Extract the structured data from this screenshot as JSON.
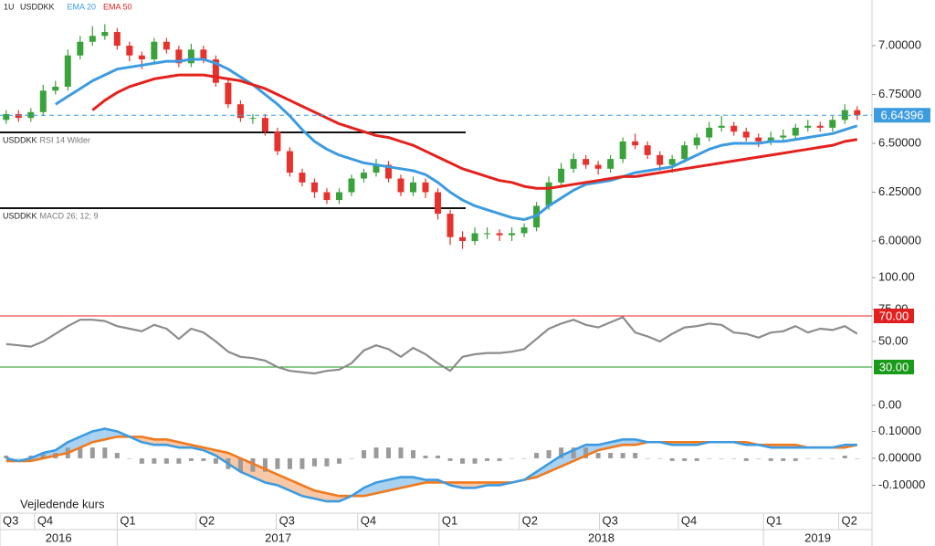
{
  "time_axis": {
    "xlim": [
      -0.5,
      70.2
    ],
    "quarters": [
      {
        "value": -0.5,
        "label": "Q3"
      },
      {
        "value": 2.3,
        "label": "Q4"
      },
      {
        "value": 9,
        "label": "Q1"
      },
      {
        "value": 15.4,
        "label": "Q2"
      },
      {
        "value": 21.9,
        "label": "Q3"
      },
      {
        "value": 28.5,
        "label": "Q4"
      },
      {
        "value": 35.1,
        "label": "Q1"
      },
      {
        "value": 41.6,
        "label": "Q2"
      },
      {
        "value": 48.1,
        "label": "Q3"
      },
      {
        "value": 54.5,
        "label": "Q4"
      },
      {
        "value": 61.4,
        "label": "Q1"
      },
      {
        "value": 67.5,
        "label": "Q2"
      }
    ],
    "years": [
      {
        "value": -0.5,
        "label": "2016"
      },
      {
        "value": 9,
        "label": "2017"
      },
      {
        "value": 35.1,
        "label": "2018"
      },
      {
        "value": 61.4,
        "label": "2019"
      }
    ]
  },
  "footnote": "Vejledende kurs",
  "chart_data": [
    {
      "type": "candlestick",
      "interval": "1U",
      "symbol": "USDDKK",
      "open": [
        6.62,
        6.65,
        6.63,
        6.66,
        6.77,
        6.79,
        6.95,
        7.02,
        7.05,
        7.07,
        7.0,
        6.95,
        6.93,
        7.02,
        6.98,
        6.91,
        6.98,
        6.93,
        6.81,
        6.7,
        6.63,
        6.63,
        6.56,
        6.46,
        6.35,
        6.3,
        6.25,
        6.21,
        6.25,
        6.32,
        6.35,
        6.39,
        6.32,
        6.25,
        6.3,
        6.25,
        6.14,
        6.02,
        6.0,
        6.04,
        6.04,
        6.03,
        6.04,
        6.07,
        6.18,
        6.3,
        6.37,
        6.42,
        6.39,
        6.37,
        6.42,
        6.51,
        6.49,
        6.44,
        6.39,
        6.42,
        6.49,
        6.53,
        6.58,
        6.59,
        6.56,
        6.53,
        6.51,
        6.53,
        6.54,
        6.58,
        6.59,
        6.58,
        6.62,
        6.67
      ],
      "high": [
        6.67,
        6.67,
        6.68,
        6.8,
        6.82,
        6.98,
        7.05,
        7.1,
        7.11,
        7.09,
        7.02,
        6.97,
        7.04,
        7.04,
        7.0,
        7.01,
        7.0,
        6.95,
        6.83,
        6.72,
        6.65,
        6.65,
        6.58,
        6.48,
        6.37,
        6.32,
        6.27,
        6.27,
        6.34,
        6.37,
        6.42,
        6.41,
        6.34,
        6.33,
        6.32,
        6.27,
        6.16,
        6.05,
        6.07,
        6.07,
        6.06,
        6.07,
        6.09,
        6.2,
        6.33,
        6.4,
        6.45,
        6.44,
        6.41,
        6.44,
        6.53,
        6.55,
        6.51,
        6.46,
        6.44,
        6.51,
        6.55,
        6.61,
        6.64,
        6.61,
        6.58,
        6.55,
        6.56,
        6.57,
        6.6,
        6.62,
        6.61,
        6.64,
        6.7,
        6.69
      ],
      "low": [
        6.6,
        6.61,
        6.61,
        6.64,
        6.75,
        6.77,
        6.93,
        7.0,
        7.03,
        6.98,
        6.92,
        6.88,
        6.91,
        6.96,
        6.89,
        6.89,
        6.91,
        6.79,
        6.68,
        6.61,
        6.6,
        6.54,
        6.44,
        6.33,
        6.28,
        6.22,
        6.19,
        6.19,
        6.23,
        6.3,
        6.33,
        6.3,
        6.23,
        6.23,
        6.22,
        6.11,
        5.98,
        5.96,
        5.98,
        6.01,
        6.0,
        6.0,
        6.02,
        6.05,
        6.16,
        6.28,
        6.35,
        6.37,
        6.34,
        6.35,
        6.4,
        6.47,
        6.42,
        6.36,
        6.35,
        6.4,
        6.47,
        6.51,
        6.56,
        6.54,
        6.51,
        6.48,
        6.49,
        6.51,
        6.52,
        6.56,
        6.56,
        6.56,
        6.6,
        6.62
      ],
      "close": [
        6.65,
        6.63,
        6.66,
        6.77,
        6.79,
        6.95,
        7.02,
        7.05,
        7.07,
        7.0,
        6.95,
        6.93,
        7.02,
        6.98,
        6.91,
        6.98,
        6.93,
        6.81,
        6.7,
        6.63,
        6.63,
        6.56,
        6.46,
        6.35,
        6.3,
        6.25,
        6.21,
        6.25,
        6.32,
        6.35,
        6.39,
        6.32,
        6.25,
        6.3,
        6.25,
        6.14,
        6.02,
        6.0,
        6.04,
        6.04,
        6.03,
        6.04,
        6.07,
        6.18,
        6.3,
        6.37,
        6.42,
        6.39,
        6.37,
        6.42,
        6.51,
        6.49,
        6.44,
        6.39,
        6.42,
        6.49,
        6.53,
        6.58,
        6.59,
        6.56,
        6.53,
        6.51,
        6.53,
        6.54,
        6.58,
        6.59,
        6.58,
        6.62,
        6.67,
        6.64396
      ],
      "up_color": "#3aa23a",
      "down_color": "#e5322d",
      "series": [
        {
          "name": "EMA 20",
          "color": "#3d9be0",
          "values": [
            null,
            null,
            null,
            null,
            6.7,
            6.74,
            6.78,
            6.82,
            6.85,
            6.88,
            6.89,
            6.9,
            6.91,
            6.92,
            6.92,
            6.93,
            6.93,
            6.91,
            6.88,
            6.84,
            6.8,
            6.75,
            6.7,
            6.64,
            6.57,
            6.51,
            6.47,
            6.44,
            6.42,
            6.4,
            6.39,
            6.38,
            6.37,
            6.36,
            6.34,
            6.3,
            6.25,
            6.21,
            6.18,
            6.16,
            6.14,
            6.12,
            6.11,
            6.13,
            6.18,
            6.22,
            6.26,
            6.29,
            6.3,
            6.31,
            6.33,
            6.35,
            6.36,
            6.37,
            6.38,
            6.41,
            6.44,
            6.47,
            6.49,
            6.5,
            6.5,
            6.5,
            6.51,
            6.51,
            6.52,
            6.53,
            6.54,
            6.55,
            6.57,
            6.59
          ]
        },
        {
          "name": "EMA 50",
          "color": "#e3221d",
          "values": [
            null,
            null,
            null,
            null,
            null,
            null,
            null,
            6.67,
            6.72,
            6.76,
            6.79,
            6.81,
            6.83,
            6.84,
            6.85,
            6.85,
            6.85,
            6.84,
            6.83,
            6.82,
            6.8,
            6.78,
            6.75,
            6.72,
            6.69,
            6.66,
            6.63,
            6.6,
            6.58,
            6.56,
            6.54,
            6.53,
            6.51,
            6.49,
            6.46,
            6.43,
            6.4,
            6.37,
            6.35,
            6.33,
            6.31,
            6.3,
            6.28,
            6.27,
            6.27,
            6.28,
            6.29,
            6.3,
            6.31,
            6.32,
            6.33,
            6.33,
            6.34,
            6.35,
            6.36,
            6.37,
            6.38,
            6.39,
            6.4,
            6.41,
            6.42,
            6.43,
            6.44,
            6.45,
            6.46,
            6.47,
            6.48,
            6.49,
            6.51,
            6.52
          ]
        }
      ],
      "last_price": 6.64396,
      "last_price_color": "#3d9be0",
      "ylim": [
        5.8,
        7.23
      ],
      "yticks": [
        {
          "value": 6,
          "label": "6.00000"
        },
        {
          "value": 6.25,
          "label": "6.25000"
        },
        {
          "value": 6.5,
          "label": "6.50000"
        },
        {
          "value": 6.75,
          "label": "6.75000"
        },
        {
          "value": 7,
          "label": "7.00000"
        }
      ]
    },
    {
      "type": "line",
      "symbol": "USDDKK",
      "title": "RSI 14 Wilder",
      "color": "#8c8c8c",
      "values": [
        48,
        47,
        46,
        50,
        56,
        62,
        67,
        67,
        66,
        62,
        60,
        58,
        63,
        60,
        52,
        60,
        57,
        50,
        42,
        38,
        37,
        35,
        30,
        27,
        26,
        25,
        27,
        28,
        33,
        43,
        47,
        44,
        38,
        45,
        40,
        33,
        27,
        38,
        40,
        41,
        41,
        42,
        44,
        52,
        60,
        64,
        67,
        63,
        61,
        65,
        69,
        57,
        54,
        50,
        56,
        61,
        62,
        64,
        63,
        57,
        56,
        53,
        57,
        58,
        62,
        57,
        60,
        59,
        62,
        56
      ],
      "ylim": [
        0,
        100
      ],
      "yticks": [
        {
          "value": 0,
          "label": "0.00"
        },
        {
          "value": 50,
          "label": "50.00"
        },
        {
          "value": 75,
          "label": "75.00"
        },
        {
          "value": 100,
          "label": "100.00"
        }
      ],
      "levels": [
        {
          "value": 70,
          "label": "70.00",
          "color": "#e02020"
        },
        {
          "value": 30,
          "label": "30.00",
          "color": "#1a9a1a"
        }
      ]
    },
    {
      "type": "macd",
      "symbol": "USDDKK",
      "title": "MACD 26; 12; 9",
      "macd": [
        0.0,
        -0.01,
        0.0,
        0.02,
        0.03,
        0.06,
        0.08,
        0.1,
        0.11,
        0.1,
        0.08,
        0.06,
        0.05,
        0.05,
        0.04,
        0.04,
        0.03,
        0.01,
        -0.02,
        -0.05,
        -0.07,
        -0.09,
        -0.1,
        -0.12,
        -0.14,
        -0.15,
        -0.16,
        -0.16,
        -0.14,
        -0.11,
        -0.09,
        -0.08,
        -0.07,
        -0.07,
        -0.08,
        -0.08,
        -0.1,
        -0.11,
        -0.11,
        -0.1,
        -0.1,
        -0.09,
        -0.08,
        -0.05,
        -0.02,
        0.01,
        0.03,
        0.05,
        0.05,
        0.06,
        0.07,
        0.07,
        0.06,
        0.06,
        0.05,
        0.05,
        0.05,
        0.06,
        0.06,
        0.06,
        0.05,
        0.05,
        0.04,
        0.04,
        0.04,
        0.04,
        0.04,
        0.04,
        0.05,
        0.05
      ],
      "signal": [
        -0.01,
        -0.01,
        -0.01,
        0.0,
        0.01,
        0.02,
        0.04,
        0.06,
        0.07,
        0.08,
        0.08,
        0.08,
        0.07,
        0.07,
        0.06,
        0.05,
        0.04,
        0.03,
        0.02,
        0.0,
        -0.02,
        -0.04,
        -0.06,
        -0.08,
        -0.1,
        -0.12,
        -0.13,
        -0.14,
        -0.14,
        -0.14,
        -0.13,
        -0.12,
        -0.11,
        -0.1,
        -0.09,
        -0.09,
        -0.09,
        -0.09,
        -0.09,
        -0.09,
        -0.09,
        -0.09,
        -0.08,
        -0.07,
        -0.05,
        -0.03,
        -0.01,
        0.01,
        0.03,
        0.04,
        0.05,
        0.05,
        0.06,
        0.06,
        0.06,
        0.06,
        0.06,
        0.06,
        0.06,
        0.06,
        0.06,
        0.05,
        0.05,
        0.05,
        0.05,
        0.04,
        0.04,
        0.04,
        0.04,
        0.05
      ],
      "histogram": [
        0.01,
        0,
        0.01,
        0.02,
        0.02,
        0.04,
        0.04,
        0.04,
        0.04,
        0.02,
        0,
        -0.02,
        -0.02,
        -0.02,
        -0.02,
        -0.01,
        -0.01,
        -0.02,
        -0.04,
        -0.05,
        -0.05,
        -0.05,
        -0.04,
        -0.04,
        -0.04,
        -0.03,
        -0.03,
        -0.02,
        0,
        0.03,
        0.04,
        0.04,
        0.04,
        0.03,
        0.01,
        0.01,
        -0.01,
        -0.02,
        -0.02,
        -0.01,
        -0.01,
        0,
        0,
        0.02,
        0.03,
        0.04,
        0.04,
        0.04,
        0.02,
        0.02,
        0.02,
        0.02,
        0,
        0,
        -0.01,
        -0.01,
        -0.01,
        0,
        0,
        0,
        -0.01,
        0,
        -0.01,
        -0.01,
        -0.01,
        0,
        0,
        0,
        0.01,
        0
      ],
      "macd_color": "#3d9be0",
      "signal_color": "#f07a1e",
      "histogram_color": "#9a9a9a",
      "fill_above_color": "#a9d1f0",
      "fill_below_color": "#f7c7a6",
      "ylim": [
        -0.18,
        0.2
      ],
      "yticks": [
        {
          "value": -0.1,
          "label": "-0.10000"
        },
        {
          "value": 0,
          "label": "0.00000"
        },
        {
          "value": 0.1,
          "label": "0.10000"
        }
      ]
    }
  ]
}
